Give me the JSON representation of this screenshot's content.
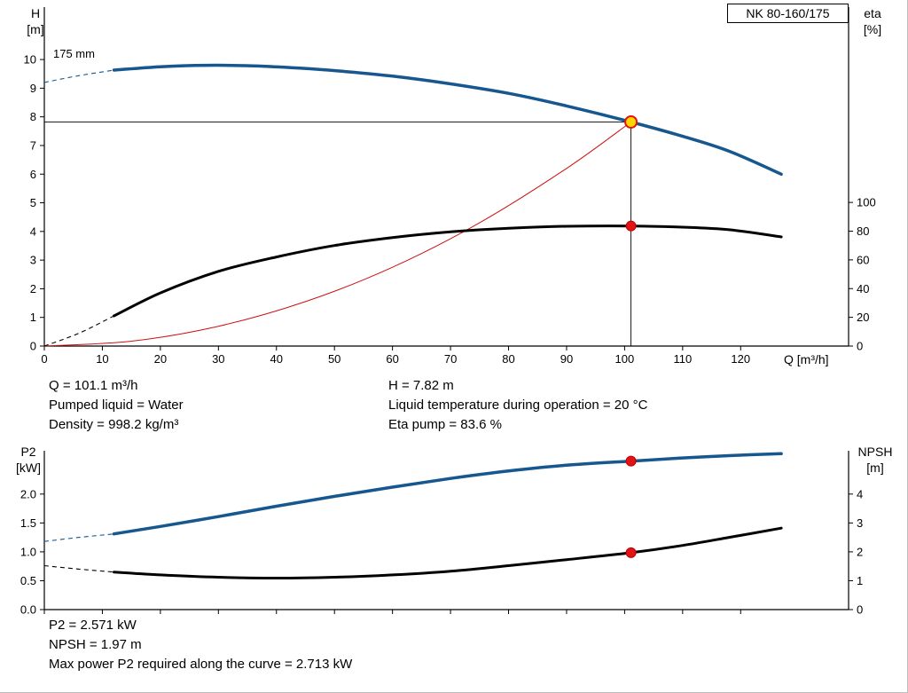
{
  "pump_name": "NK 80-160/175",
  "chart_data": [
    {
      "type": "line",
      "name": "head-and-efficiency-chart",
      "curve_label": "175 mm",
      "x_axis": {
        "label": "Q [m³/h]",
        "min": 0,
        "max": 138.6,
        "ticks": [
          0,
          10,
          20,
          30,
          40,
          50,
          60,
          70,
          80,
          90,
          100,
          110,
          120
        ],
        "show_tick_labels": true
      },
      "y_left": {
        "label": "H",
        "unit": "[m]",
        "min": 0,
        "max": 11.83,
        "decimals": 0,
        "ticks": [
          0,
          1,
          2,
          3,
          4,
          5,
          6,
          7,
          8,
          9,
          10
        ]
      },
      "y_right": {
        "label": "eta",
        "unit": "[%]",
        "min": 0,
        "max": 236,
        "decimals": 0,
        "ticks": [
          0,
          20,
          40,
          60,
          80,
          100
        ]
      },
      "series": [
        {
          "name": "system-curve",
          "axis": "left",
          "color": "#cc1111",
          "width": 1,
          "points": [
            [
              0,
              0
            ],
            [
              15,
              0.17
            ],
            [
              30,
              0.69
            ],
            [
              45,
              1.55
            ],
            [
              60,
              2.75
            ],
            [
              75,
              4.3
            ],
            [
              90,
              6.2
            ],
            [
              101.1,
              7.82
            ]
          ]
        },
        {
          "name": "efficiency-curve",
          "axis": "right",
          "color": "#000000",
          "width": 3,
          "dash_points": [
            [
              0,
              0
            ],
            [
              6,
              9
            ],
            [
              12,
              21
            ]
          ],
          "points": [
            [
              12,
              21
            ],
            [
              20,
              37
            ],
            [
              30,
              52
            ],
            [
              40,
              62
            ],
            [
              50,
              70
            ],
            [
              60,
              75.5
            ],
            [
              70,
              79.5
            ],
            [
              80,
              82
            ],
            [
              90,
              83.4
            ],
            [
              101.1,
              83.6
            ],
            [
              110,
              82.8
            ],
            [
              118,
              81
            ],
            [
              127,
              76
            ]
          ]
        },
        {
          "name": "head-curve",
          "axis": "left",
          "color": "#17578f",
          "width": 3.5,
          "dash_points": [
            [
              0,
              9.2
            ],
            [
              6,
              9.44
            ],
            [
              12,
              9.63
            ]
          ],
          "points": [
            [
              12,
              9.63
            ],
            [
              20,
              9.75
            ],
            [
              28,
              9.8
            ],
            [
              36,
              9.78
            ],
            [
              44,
              9.7
            ],
            [
              52,
              9.58
            ],
            [
              60,
              9.42
            ],
            [
              70,
              9.15
            ],
            [
              80,
              8.82
            ],
            [
              90,
              8.38
            ],
            [
              101.1,
              7.82
            ],
            [
              110,
              7.32
            ],
            [
              118,
              6.8
            ],
            [
              127,
              6.0
            ]
          ]
        }
      ],
      "ref_lines": [
        {
          "orient": "h",
          "axis": "left",
          "v": 7.82,
          "q1": 0,
          "q2": 101.1
        },
        {
          "orient": "v",
          "axis": "left",
          "q": 101.1,
          "v1": 0,
          "v2": 7.82
        }
      ],
      "markers": [
        {
          "name": "duty-point-head",
          "axis": "left",
          "q": 101.1,
          "v": 7.82,
          "r": 6.5,
          "fill": "#ffd400",
          "stroke": "#e01414",
          "sw": 2
        },
        {
          "name": "duty-point-efficiency",
          "axis": "right",
          "q": 101.1,
          "v": 83.6,
          "r": 5.5,
          "fill": "#e01414",
          "stroke": "#c00000",
          "sw": 1
        }
      ]
    },
    {
      "type": "line",
      "name": "power-and-npsh-chart",
      "x_axis": {
        "label": "",
        "min": 0,
        "max": 138.6,
        "ticks": [
          0,
          10,
          20,
          30,
          40,
          50,
          60,
          70,
          80,
          90,
          100,
          110,
          120
        ],
        "show_tick_labels": false
      },
      "y_left": {
        "label": "P2",
        "unit": "[kW]",
        "min": 0,
        "max": 2.75,
        "decimals": 1,
        "ticks": [
          0,
          0.5,
          1,
          1.5,
          2
        ]
      },
      "y_right": {
        "label": "NPSH",
        "unit": "[m]",
        "min": 0,
        "max": 5.5,
        "decimals": 0,
        "ticks": [
          0,
          1,
          2,
          3,
          4
        ]
      },
      "series": [
        {
          "name": "npsh-curve",
          "axis": "right",
          "color": "#000000",
          "width": 3,
          "dash_points": [
            [
              0,
              1.52
            ],
            [
              6,
              1.4
            ],
            [
              12,
              1.3
            ]
          ],
          "points": [
            [
              12,
              1.3
            ],
            [
              20,
              1.2
            ],
            [
              30,
              1.12
            ],
            [
              40,
              1.09
            ],
            [
              50,
              1.12
            ],
            [
              60,
              1.2
            ],
            [
              70,
              1.33
            ],
            [
              80,
              1.52
            ],
            [
              90,
              1.73
            ],
            [
              101.1,
              1.97
            ],
            [
              110,
              2.22
            ],
            [
              118,
              2.5
            ],
            [
              127,
              2.82
            ]
          ]
        },
        {
          "name": "power-curve",
          "axis": "left",
          "color": "#17578f",
          "width": 3.5,
          "dash_points": [
            [
              0,
              1.18
            ],
            [
              6,
              1.25
            ],
            [
              12,
              1.31
            ]
          ],
          "points": [
            [
              12,
              1.31
            ],
            [
              20,
              1.44
            ],
            [
              30,
              1.61
            ],
            [
              40,
              1.79
            ],
            [
              50,
              1.96
            ],
            [
              60,
              2.12
            ],
            [
              70,
              2.27
            ],
            [
              80,
              2.4
            ],
            [
              90,
              2.5
            ],
            [
              101.1,
              2.571
            ],
            [
              110,
              2.625
            ],
            [
              118,
              2.665
            ],
            [
              127,
              2.7
            ]
          ]
        }
      ],
      "ref_lines": [],
      "markers": [
        {
          "name": "duty-point-power",
          "axis": "left",
          "q": 101.1,
          "v": 2.571,
          "r": 5.5,
          "fill": "#e01414",
          "stroke": "#c00000",
          "sw": 1
        },
        {
          "name": "duty-point-npsh",
          "axis": "right",
          "q": 101.1,
          "v": 1.97,
          "r": 5.5,
          "fill": "#e01414",
          "stroke": "#c00000",
          "sw": 1
        }
      ]
    }
  ],
  "operating_point": {
    "left": [
      "Q = 101.1 m³/h",
      "Pumped liquid = Water",
      "Density = 998.2 kg/m³"
    ],
    "right": [
      "H = 7.82 m",
      "Liquid temperature during operation = 20 °C",
      "Eta pump = 83.6 %"
    ]
  },
  "power_results": [
    "P2 = 2.571 kW",
    "NPSH = 1.97 m",
    "Max power P2 required along the curve = 2.713 kW"
  ]
}
